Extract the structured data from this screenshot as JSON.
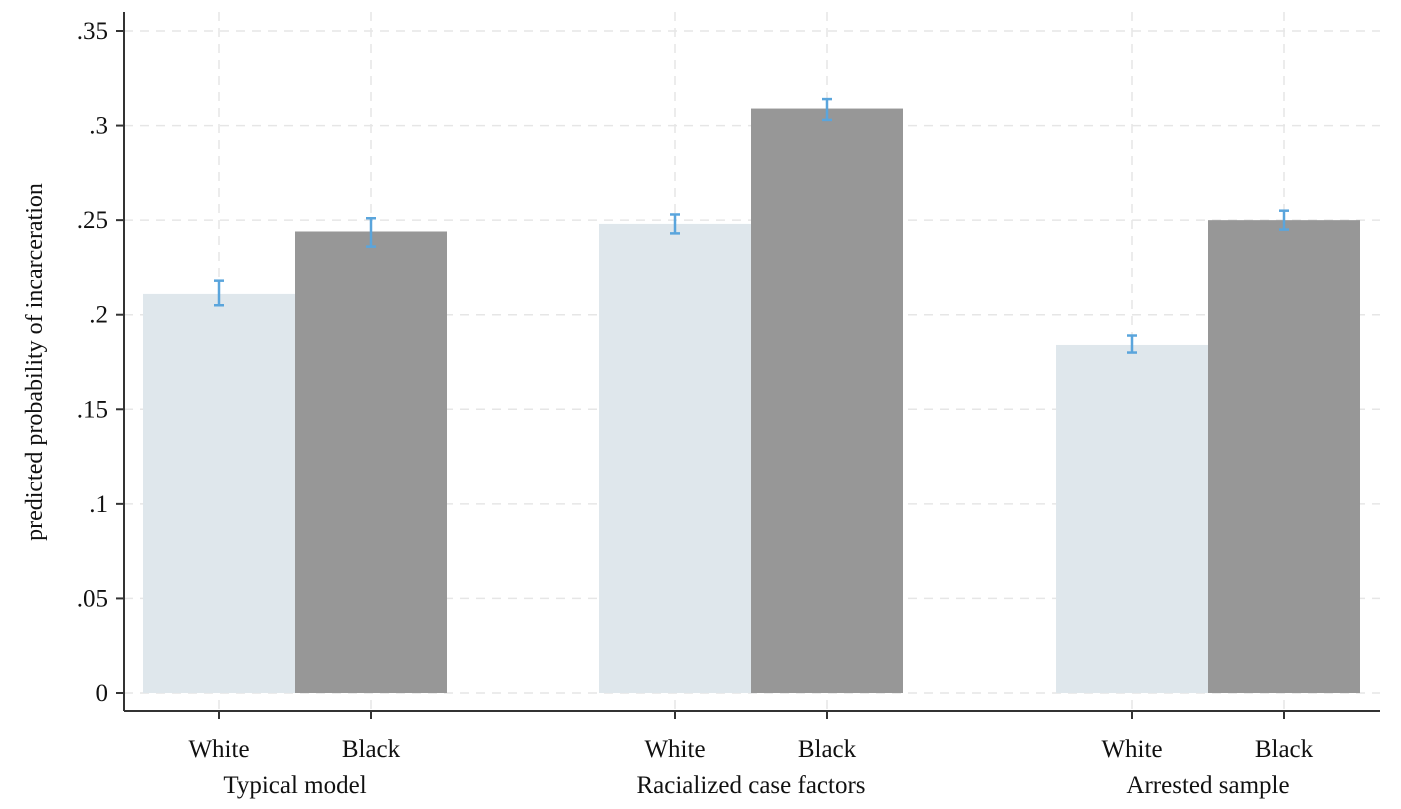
{
  "chart_data": {
    "type": "bar",
    "title": "",
    "ylabel": "predicted probability of incarceration",
    "xlabel": "",
    "ylim": [
      0,
      0.35
    ],
    "yticks": [
      {
        "value": 0,
        "label": "0"
      },
      {
        "value": 0.05,
        "label": ".05"
      },
      {
        "value": 0.1,
        "label": ".1"
      },
      {
        "value": 0.15,
        "label": ".15"
      },
      {
        "value": 0.2,
        "label": ".2"
      },
      {
        "value": 0.25,
        "label": ".25"
      },
      {
        "value": 0.3,
        "label": ".3"
      },
      {
        "value": 0.35,
        "label": ".35"
      }
    ],
    "grid": true,
    "groups": [
      {
        "label": "Typical model",
        "bars": [
          {
            "category": "White",
            "value": 0.211,
            "ci_low": 0.205,
            "ci_high": 0.218,
            "color": "#dfe7ec"
          },
          {
            "category": "Black",
            "value": 0.244,
            "ci_low": 0.236,
            "ci_high": 0.251,
            "color": "#979797"
          }
        ]
      },
      {
        "label": "Racialized case factors",
        "bars": [
          {
            "category": "White",
            "value": 0.248,
            "ci_low": 0.243,
            "ci_high": 0.253,
            "color": "#dfe7ec"
          },
          {
            "category": "Black",
            "value": 0.309,
            "ci_low": 0.303,
            "ci_high": 0.314,
            "color": "#979797"
          }
        ]
      },
      {
        "label": "Arrested sample",
        "bars": [
          {
            "category": "White",
            "value": 0.184,
            "ci_low": 0.18,
            "ci_high": 0.189,
            "color": "#dfe7ec"
          },
          {
            "category": "Black",
            "value": 0.25,
            "ci_low": 0.245,
            "ci_high": 0.255,
            "color": "#979797"
          }
        ]
      }
    ],
    "error_bar_color": "#5aa5dc"
  }
}
